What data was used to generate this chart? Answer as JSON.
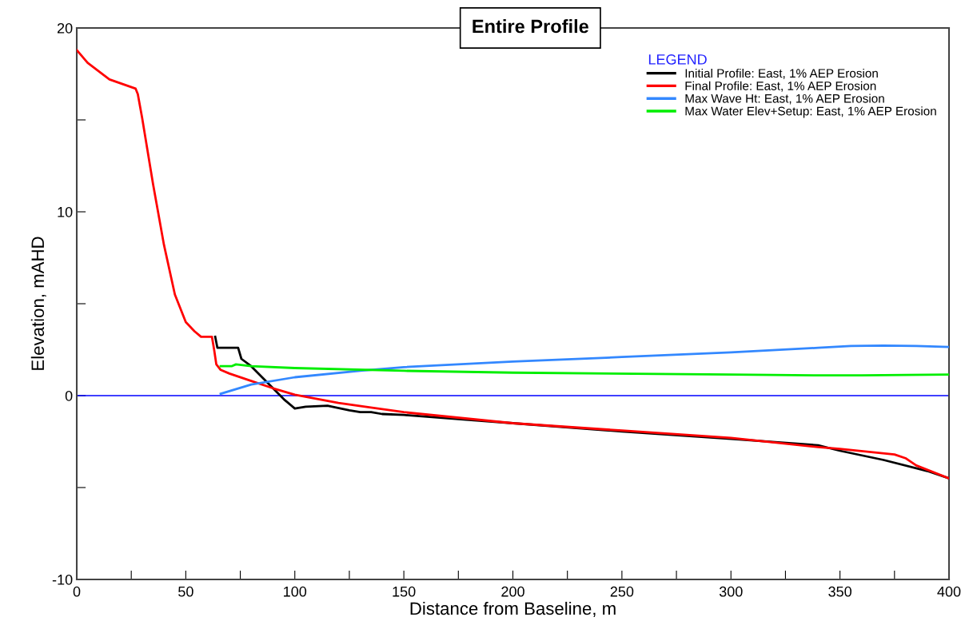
{
  "chart_data": {
    "type": "line",
    "title": "Entire Profile",
    "xlabel": "Distance from Baseline, m",
    "ylabel": "Elevation, mAHD",
    "legend_title": "LEGEND",
    "legend": "top right",
    "grid": false,
    "marker": "none",
    "line_style": "solid",
    "xlim": [
      0,
      400
    ],
    "ylim": [
      -10,
      20
    ],
    "xticks": [
      0,
      {
        "value": 25,
        "label": null
      },
      50,
      {
        "value": 75,
        "label": null
      },
      100,
      {
        "value": 125,
        "label": null
      },
      150,
      {
        "value": 175,
        "label": null
      },
      200,
      {
        "value": 225,
        "label": null
      },
      250,
      {
        "value": 275,
        "label": null
      },
      300,
      {
        "value": 325,
        "label": null
      },
      350,
      {
        "value": 375,
        "label": null
      },
      400
    ],
    "yticks": [
      -10,
      {
        "value": -5,
        "label": null
      },
      0,
      {
        "value": 5,
        "label": null
      },
      10,
      {
        "value": 15,
        "label": null
      },
      20
    ],
    "ref_lines": [
      {
        "axis": "y",
        "value": 0,
        "color": "#0000ff"
      }
    ],
    "series": [
      {
        "name": "Initial Profile: East, 1% AEP Erosion",
        "color": "#000000",
        "x": [
          63.5,
          64.5,
          74,
          75.5,
          80,
          85,
          90,
          95,
          100,
          105,
          115,
          125,
          130,
          135,
          140,
          150,
          200,
          250,
          300,
          340,
          350,
          370,
          390,
          400
        ],
        "values": [
          3.2,
          2.6,
          2.6,
          2.0,
          1.6,
          1.0,
          0.4,
          -0.2,
          -0.7,
          -0.6,
          -0.55,
          -0.8,
          -0.9,
          -0.9,
          -1.0,
          -1.05,
          -1.5,
          -1.95,
          -2.35,
          -2.7,
          -3.0,
          -3.5,
          -4.1,
          -4.5
        ]
      },
      {
        "name": "Final Profile: East, 1% AEP Erosion",
        "color": "#ff0000",
        "x": [
          0,
          5,
          15,
          27,
          28,
          30,
          35,
          40,
          45,
          50,
          54,
          57,
          62,
          63,
          64,
          66,
          70,
          80,
          90,
          100,
          120,
          150,
          200,
          250,
          300,
          340,
          350,
          375,
          380,
          385,
          400
        ],
        "values": [
          18.8,
          18.1,
          17.2,
          16.7,
          16.4,
          15.1,
          11.5,
          8.2,
          5.5,
          4.0,
          3.5,
          3.2,
          3.2,
          2.5,
          1.7,
          1.4,
          1.2,
          0.8,
          0.4,
          0.05,
          -0.4,
          -0.9,
          -1.5,
          -1.9,
          -2.3,
          -2.8,
          -2.9,
          -3.2,
          -3.4,
          -3.8,
          -4.5
        ]
      },
      {
        "name": "Max Wave Ht: East, 1% AEP Erosion",
        "color": "#3388ff",
        "x": [
          66,
          80,
          100,
          130,
          150,
          200,
          250,
          300,
          340,
          355,
          370,
          385,
          400
        ],
        "values": [
          0.1,
          0.6,
          1.0,
          1.35,
          1.55,
          1.85,
          2.1,
          2.35,
          2.6,
          2.7,
          2.72,
          2.7,
          2.65
        ]
      },
      {
        "name": "Max Water Elev+Setup: East, 1% AEP Erosion",
        "color": "#00ee00",
        "x": [
          66,
          71,
          73,
          80,
          100,
          150,
          200,
          300,
          340,
          360,
          400
        ],
        "values": [
          1.6,
          1.6,
          1.7,
          1.6,
          1.5,
          1.35,
          1.25,
          1.15,
          1.1,
          1.1,
          1.15
        ]
      }
    ]
  }
}
